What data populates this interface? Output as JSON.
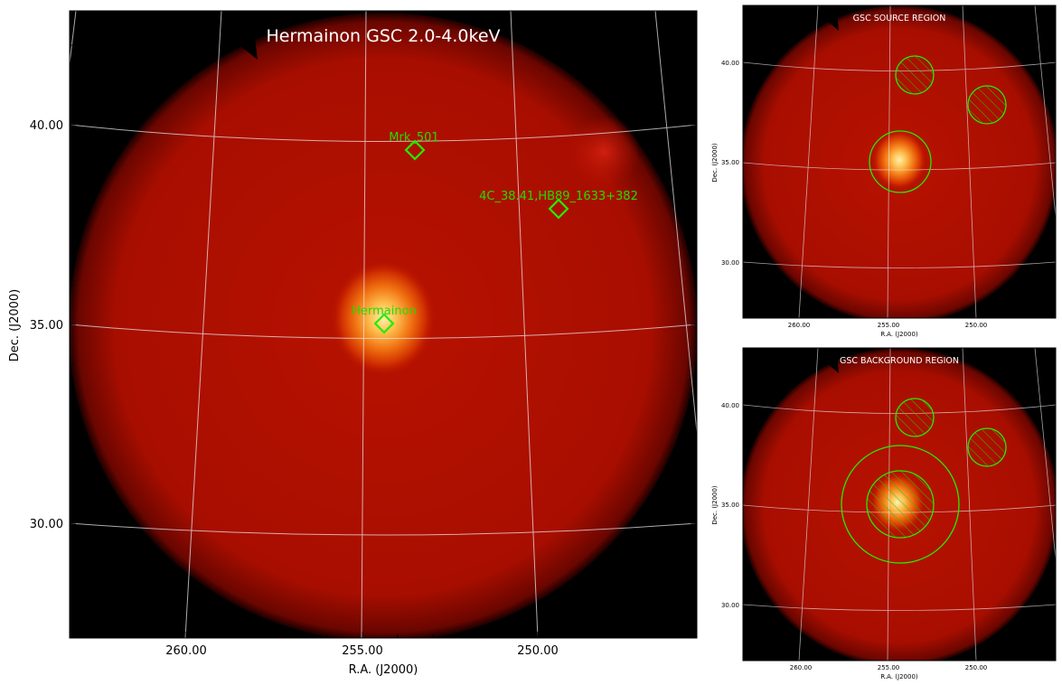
{
  "main": {
    "title": "Hermainon GSC 2.0-4.0keV",
    "xlabel": "R.A. (J2000)",
    "ylabel": "Dec. (J2000)",
    "x_ticks": [
      "260.00",
      "255.00",
      "250.00"
    ],
    "y_ticks": [
      "40.00",
      "35.00",
      "30.00"
    ],
    "sources": [
      {
        "name": "Mrk_501"
      },
      {
        "name": "4C_38.41,HB89_1633+382"
      },
      {
        "name": "Hermainon"
      }
    ]
  },
  "source_panel": {
    "title": "GSC SOURCE REGION",
    "xlabel": "R.A. (J2000)",
    "ylabel": "Dec. (J2000)",
    "x_ticks": [
      "260.00",
      "255.00",
      "250.00"
    ],
    "y_ticks": [
      "40.00",
      "35.00",
      "30.00"
    ]
  },
  "background_panel": {
    "title": "GSC BACKGROUND REGION",
    "xlabel": "R.A. (J2000)",
    "ylabel": "Dec. (J2000)",
    "x_ticks": [
      "260.00",
      "255.00",
      "250.00"
    ],
    "y_ticks": [
      "40.00",
      "35.00",
      "30.00"
    ]
  },
  "colors": {
    "marker": "#22ee00",
    "label": "#22dd00",
    "sky_red": "#b51000",
    "source_glow": "#ffd060"
  }
}
